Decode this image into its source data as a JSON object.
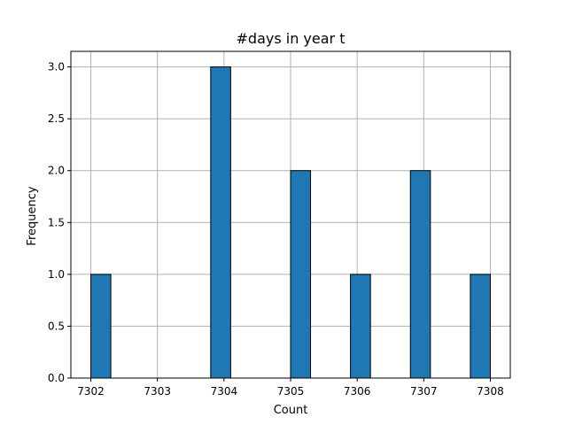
{
  "chart_data": {
    "type": "bar",
    "title": "#days in year t",
    "xlabel": "Count",
    "ylabel": "Frequency",
    "xlim": [
      7301.7,
      7308.3
    ],
    "ylim": [
      0,
      3.15
    ],
    "xticks": [
      "7302",
      "7303",
      "7304",
      "7305",
      "7306",
      "7307",
      "7308"
    ],
    "yticks": [
      "0.0",
      "0.5",
      "1.0",
      "1.5",
      "2.0",
      "2.5",
      "3.0"
    ],
    "grid": true,
    "bar_color": "#1f77b4",
    "bin_width": 0.3,
    "bars": [
      {
        "x": 7302.0,
        "value": 1
      },
      {
        "x": 7303.8,
        "value": 3
      },
      {
        "x": 7305.0,
        "value": 2
      },
      {
        "x": 7305.9,
        "value": 1
      },
      {
        "x": 7306.8,
        "value": 2
      },
      {
        "x": 7307.7,
        "value": 1
      }
    ]
  }
}
